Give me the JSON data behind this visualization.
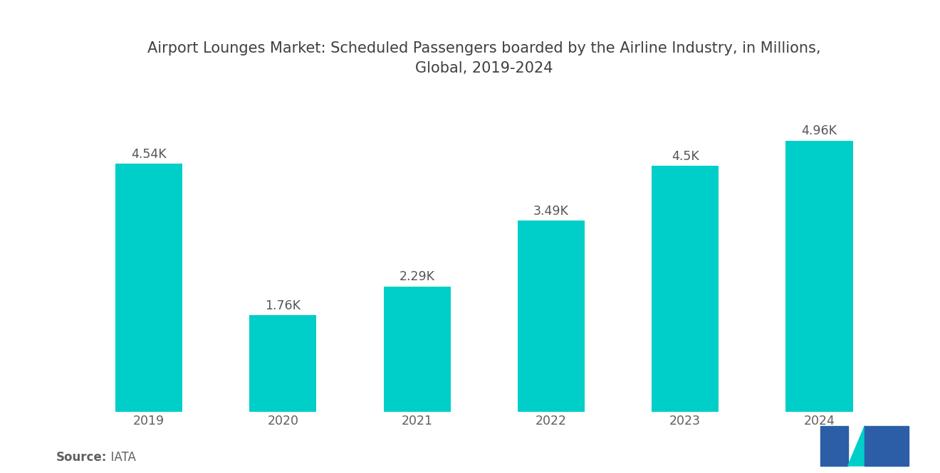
{
  "title": "Airport Lounges Market: Scheduled Passengers boarded by the Airline Industry, in Millions,\nGlobal, 2019-2024",
  "years": [
    "2019",
    "2020",
    "2021",
    "2022",
    "2023",
    "2024"
  ],
  "values": [
    4540,
    1760,
    2290,
    3490,
    4500,
    4960
  ],
  "labels": [
    "4.54K",
    "1.76K",
    "2.29K",
    "3.49K",
    "4.5K",
    "4.96K"
  ],
  "bar_color": "#00CEC9",
  "background_color": "#ffffff",
  "title_color": "#404040",
  "label_color": "#555555",
  "tick_color": "#606060",
  "source_bold": "Source:",
  "source_normal": "  IATA",
  "ylim": [
    0,
    5800
  ],
  "title_fontsize": 15,
  "label_fontsize": 12.5,
  "tick_fontsize": 12.5,
  "source_fontsize": 12,
  "bar_width": 0.5,
  "logo_dark": "#2B5EA7",
  "logo_teal": "#00CEC9"
}
